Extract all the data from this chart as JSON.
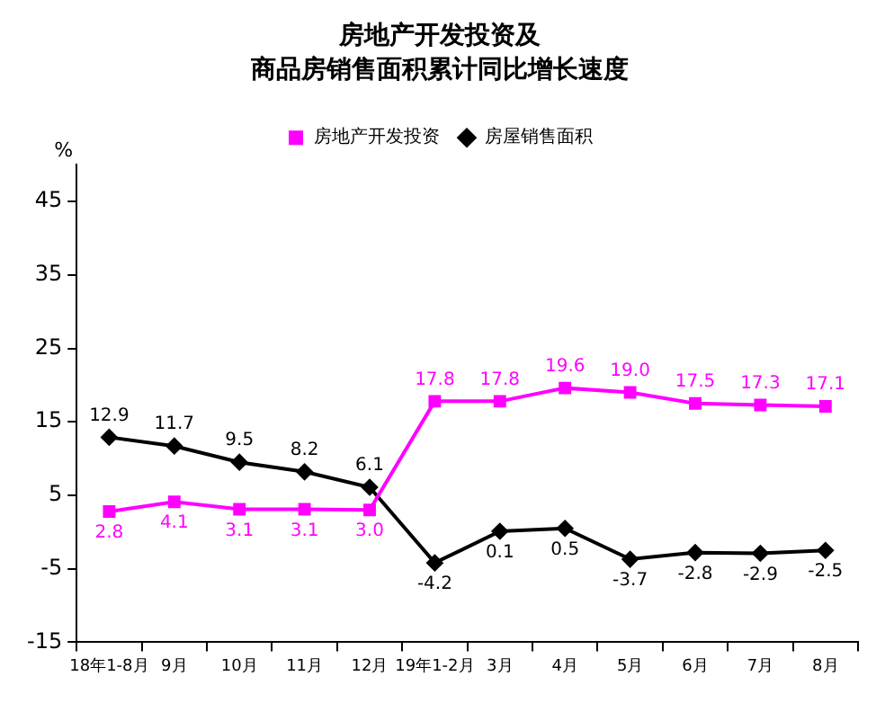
{
  "chart_data": {
    "type": "line",
    "title": "房地产开发投资及",
    "subtitle": "商品房销售面积累计同比增长速度",
    "ylabel": "%",
    "categories": [
      "18年1-8月",
      "9月",
      "10月",
      "11月",
      "12月",
      "19年1-2月",
      "3月",
      "4月",
      "5月",
      "6月",
      "7月",
      "8月"
    ],
    "series": [
      {
        "name": "房地产开发投资",
        "color": "#ff00ff",
        "marker": "square",
        "values": [
          2.8,
          4.1,
          3.1,
          3.1,
          3.0,
          17.8,
          17.8,
          19.6,
          19.0,
          17.5,
          17.3,
          17.1
        ],
        "value_labels": [
          "2.8",
          "4.1",
          "3.1",
          "3.1",
          "3.0",
          "17.8",
          "17.8",
          "19.6",
          "19.0",
          "17.5",
          "17.3",
          "17.1"
        ]
      },
      {
        "name": "房屋销售面积",
        "color": "#000000",
        "marker": "diamond",
        "values": [
          12.9,
          11.7,
          9.5,
          8.2,
          6.1,
          -4.2,
          0.1,
          0.5,
          -3.7,
          -2.8,
          -2.9,
          -2.5
        ],
        "value_labels": [
          "12.9",
          "11.7",
          "9.5",
          "8.2",
          "6.1",
          "-4.2",
          "0.1",
          "0.5",
          "-3.7",
          "-2.8",
          "-2.9",
          "-2.5"
        ]
      }
    ],
    "ylim": [
      -15,
      50
    ],
    "yticks": [
      -15,
      -5,
      5,
      15,
      25,
      35,
      45
    ],
    "grid": false,
    "legend": "top"
  }
}
